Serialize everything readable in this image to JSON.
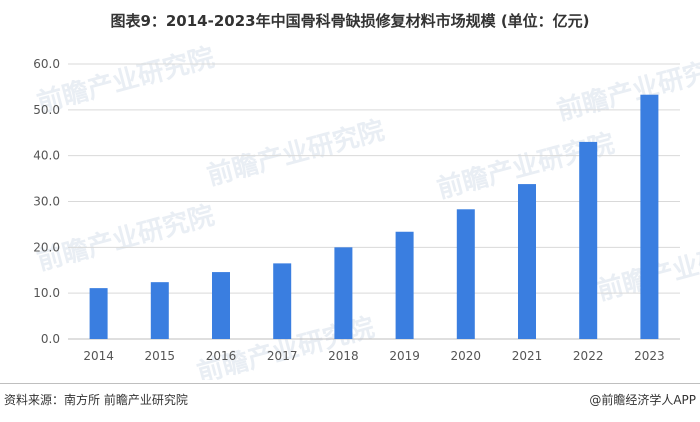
{
  "title": "图表9：2014-2023年中国骨科骨缺损修复材料市场规模 (单位：亿元)",
  "footer": {
    "source": "资料来源：南方所 前瞻产业研究院",
    "brand": "@前瞻经济学人APP"
  },
  "watermark": "前瞻产业研究院",
  "colors": {
    "bar": "#3a7ee0",
    "grid": "#d9d9d9",
    "axis": "#bfbfbf"
  },
  "chart_data": {
    "type": "bar",
    "title": "图表9：2014-2023年中国骨科骨缺损修复材料市场规模 (单位：亿元)",
    "xlabel": "",
    "ylabel": "",
    "categories": [
      "2014",
      "2015",
      "2016",
      "2017",
      "2018",
      "2019",
      "2020",
      "2021",
      "2022",
      "2023"
    ],
    "values": [
      11.1,
      12.4,
      14.6,
      16.5,
      20.0,
      23.4,
      28.3,
      33.8,
      43.0,
      53.3
    ],
    "ylim": [
      0,
      60
    ],
    "yticks": [
      "0.0",
      "10.0",
      "20.0",
      "30.0",
      "40.0",
      "50.0",
      "60.0"
    ],
    "grid": true,
    "legend": "none"
  }
}
